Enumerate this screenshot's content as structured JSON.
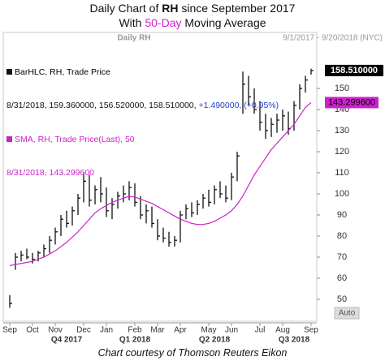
{
  "chart_data": {
    "type": "hlc",
    "title_parts": [
      "Daily Chart of ",
      "RH",
      " since September 2017"
    ],
    "subtitle_parts": [
      "With ",
      "50-Day",
      " Moving Average"
    ],
    "panel_title": "Daily RH",
    "date_range": "9/1/2017 - 9/20/2018 (NYC)",
    "categories": [
      "Sep",
      null,
      null,
      null,
      "Oct",
      null,
      null,
      null,
      "Nov",
      null,
      null,
      null,
      null,
      "Dec",
      null,
      null,
      null,
      "Jan",
      null,
      null,
      null,
      null,
      "Feb",
      null,
      null,
      null,
      "Mar",
      null,
      null,
      null,
      "Apr",
      null,
      null,
      null,
      null,
      "May",
      null,
      null,
      null,
      "Jun",
      null,
      null,
      null,
      null,
      "Jul",
      null,
      null,
      null,
      "Aug",
      null,
      null,
      null,
      null,
      "Sep"
    ],
    "quarters": [
      null,
      null,
      null,
      null,
      null,
      null,
      null,
      null,
      null,
      null,
      "Q4 2017",
      null,
      null,
      null,
      null,
      null,
      null,
      null,
      null,
      null,
      null,
      null,
      "Q1 2018",
      null,
      null,
      null,
      null,
      null,
      null,
      null,
      null,
      null,
      null,
      null,
      null,
      null,
      "Q2 2018",
      null,
      null,
      null,
      null,
      null,
      null,
      null,
      null,
      null,
      null,
      null,
      null,
      null,
      "Q3 2018",
      null,
      null,
      null
    ],
    "series": [
      {
        "name": "BarHLC, RH, Trade Price",
        "color": "#111111",
        "readout": "8/31/2018, 159.360000, 156.520000, 158.510000, ",
        "readout_change": "+1.490000, (+0.95%)",
        "change_color": "#1f3fd0",
        "high": [
          52,
          72,
          73,
          74,
          72,
          73,
          76,
          80,
          84,
          90,
          92,
          94,
          100,
          110,
          109,
          104,
          108,
          103,
          98,
          101,
          104,
          106,
          105,
          99,
          95,
          94,
          88,
          84,
          82,
          80,
          92,
          95,
          96,
          97,
          100,
          102,
          104,
          106,
          104,
          110,
          120,
          158,
          156,
          150,
          144,
          138,
          136,
          138,
          140,
          139,
          144,
          152,
          156,
          159.36
        ],
        "low": [
          46,
          64,
          68,
          69,
          67,
          68,
          70,
          72,
          76,
          80,
          84,
          85,
          90,
          96,
          94,
          95,
          96,
          89,
          88,
          93,
          96,
          97,
          94,
          88,
          86,
          84,
          78,
          77,
          75,
          75,
          77,
          88,
          89,
          90,
          93,
          94,
          95,
          98,
          96,
          97,
          106,
          138,
          142,
          138,
          130,
          126,
          127,
          129,
          130,
          128,
          130,
          140,
          148,
          156.52
        ],
        "close": [
          48,
          70,
          71,
          70,
          69,
          72,
          74,
          78,
          82,
          88,
          86,
          92,
          98,
          106,
          97,
          102,
          100,
          92,
          95,
          99,
          100,
          103,
          96,
          90,
          92,
          86,
          80,
          79,
          77,
          78,
          90,
          93,
          91,
          95,
          98,
          96,
          102,
          100,
          98,
          108,
          118,
          152,
          146,
          140,
          134,
          130,
          133,
          135,
          137,
          131,
          142,
          150,
          154,
          158.51
        ],
        "last_label": "158.510000"
      },
      {
        "name": "SMA, RH, Trade Price(Last), 50",
        "color": "#cc22cc",
        "readout": "8/31/2018, 143.299600",
        "values": [
          66,
          66.5,
          67,
          67.5,
          68,
          69,
          70,
          71.5,
          73,
          75,
          77,
          79.5,
          82,
          85,
          88,
          91,
          93,
          94.5,
          96,
          97,
          98,
          98.8,
          98.5,
          97.5,
          96.5,
          95.5,
          94,
          92.5,
          91,
          89.5,
          88,
          87,
          86,
          85.5,
          85.5,
          86,
          87,
          88.5,
          90,
          92,
          95,
          99,
          104,
          109,
          113,
          117,
          121,
          124,
          127,
          130,
          133,
          137,
          141,
          143.2996
        ],
        "last_label": "143.299600"
      }
    ],
    "ylim": [
      39.6,
      170.4
    ],
    "yticks": [
      50,
      60,
      70,
      80,
      90,
      100,
      110,
      120,
      130,
      140,
      150
    ],
    "grid": false,
    "button": "Auto",
    "credit": "Chart courtesy of Thomson Reuters Eikon"
  }
}
